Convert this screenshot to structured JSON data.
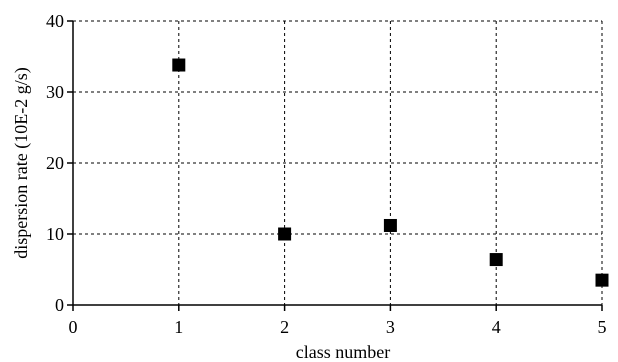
{
  "chart_data": {
    "type": "scatter",
    "title": "",
    "xlabel": "class number",
    "ylabel": "dispersion rate (10E-2 g/s)",
    "xlim": [
      0,
      5
    ],
    "ylim": [
      0,
      40
    ],
    "xticks": [
      0,
      1,
      2,
      3,
      4,
      5
    ],
    "yticks": [
      0,
      10,
      20,
      30,
      40
    ],
    "grid": true,
    "marker": "square",
    "marker_color": "#000000",
    "series": [
      {
        "x": [
          1,
          2,
          3,
          4,
          5
        ],
        "y": [
          33.8,
          10.0,
          11.2,
          6.4,
          3.5
        ]
      }
    ]
  }
}
